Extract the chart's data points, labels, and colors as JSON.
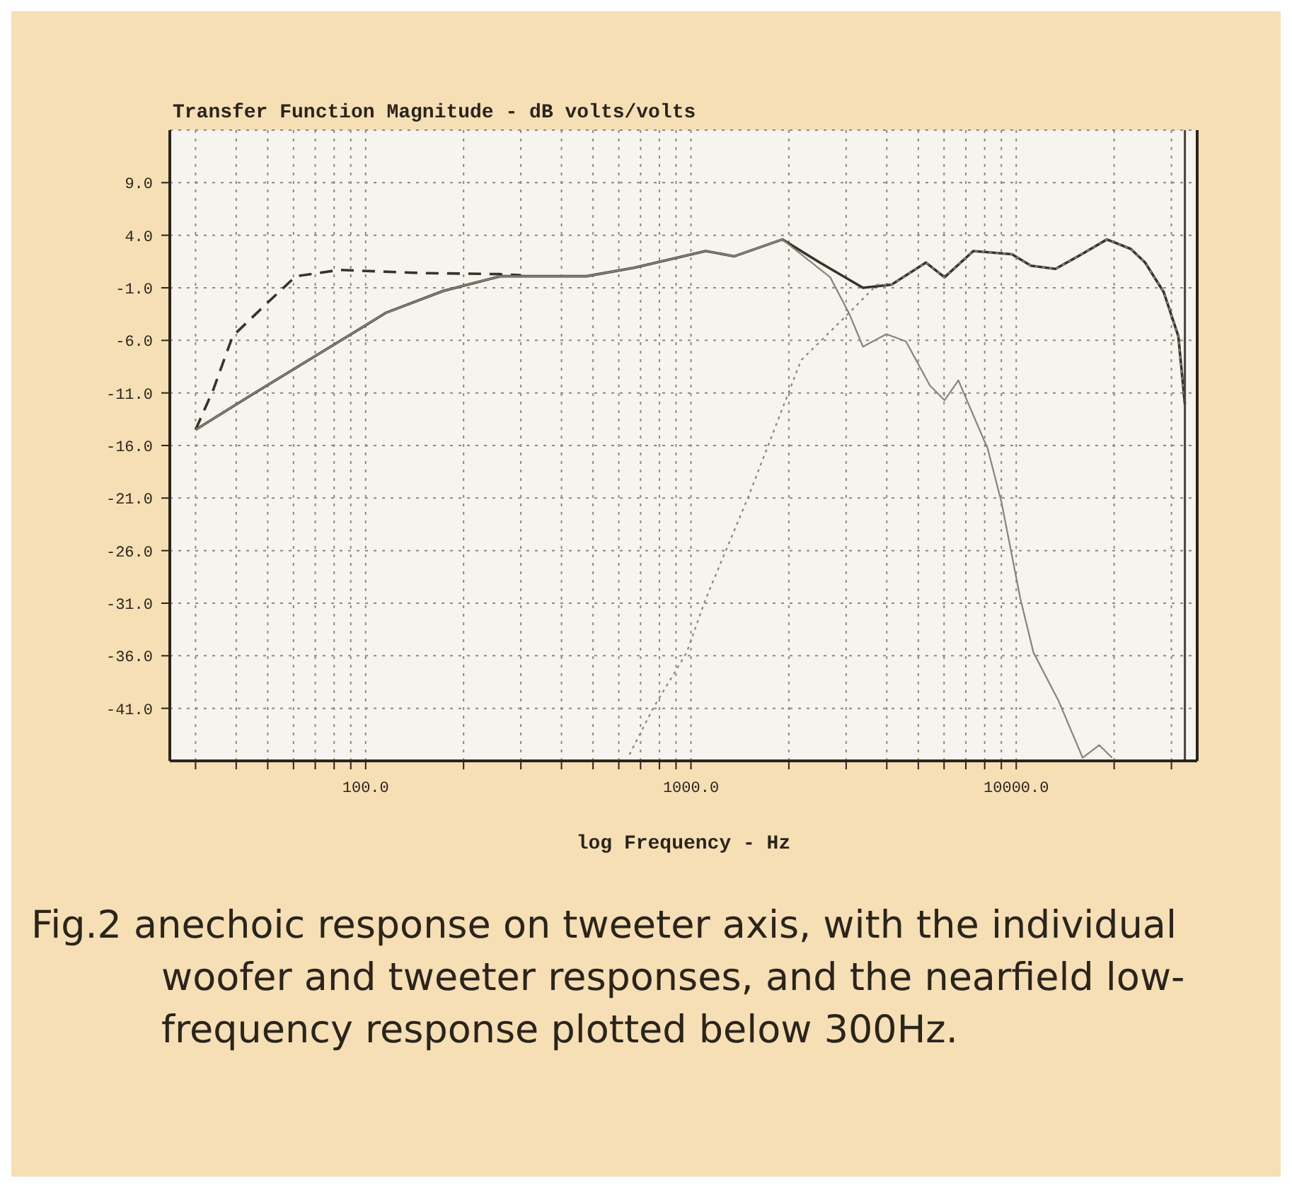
{
  "chart_data": {
    "type": "line",
    "title": "Transfer Function Magnitude - dB volts/volts",
    "xlabel": "log Frequency - Hz",
    "log": "x",
    "xlim": [
      25,
      36000
    ],
    "ylim": [
      -46,
      14
    ],
    "xticks": [
      {
        "value": 30,
        "label": null
      },
      {
        "value": 40,
        "label": null
      },
      {
        "value": 50,
        "label": null
      },
      {
        "value": 60,
        "label": null
      },
      {
        "value": 70,
        "label": null
      },
      {
        "value": 80,
        "label": null
      },
      {
        "value": 90,
        "label": null
      },
      {
        "value": 100,
        "label": "100.0"
      },
      {
        "value": 200,
        "label": null
      },
      {
        "value": 300,
        "label": null
      },
      {
        "value": 400,
        "label": null
      },
      {
        "value": 500,
        "label": null
      },
      {
        "value": 600,
        "label": null
      },
      {
        "value": 700,
        "label": null
      },
      {
        "value": 800,
        "label": null
      },
      {
        "value": 900,
        "label": null
      },
      {
        "value": 1000,
        "label": "1000.0"
      },
      {
        "value": 2000,
        "label": null
      },
      {
        "value": 3000,
        "label": null
      },
      {
        "value": 4000,
        "label": null
      },
      {
        "value": 5000,
        "label": null
      },
      {
        "value": 6000,
        "label": null
      },
      {
        "value": 7000,
        "label": null
      },
      {
        "value": 8000,
        "label": null
      },
      {
        "value": 9000,
        "label": null
      },
      {
        "value": 10000,
        "label": "10000.0"
      },
      {
        "value": 20000,
        "label": null
      },
      {
        "value": 30000,
        "label": null
      }
    ],
    "yticks": [
      {
        "value": 9,
        "label": "9.0"
      },
      {
        "value": 4,
        "label": "4.0"
      },
      {
        "value": -1,
        "label": "-1.0"
      },
      {
        "value": -6,
        "label": "-6.0"
      },
      {
        "value": -11,
        "label": "-11.0"
      },
      {
        "value": -16,
        "label": "-16.0"
      },
      {
        "value": -21,
        "label": "-21.0"
      },
      {
        "value": -26,
        "label": "-26.0"
      },
      {
        "value": -31,
        "label": "-31.0"
      },
      {
        "value": -36,
        "label": "-36.0"
      },
      {
        "value": -41,
        "label": "-41.0"
      }
    ],
    "grid": true,
    "legend": false,
    "marker": "none",
    "ref_lines": [
      {
        "axis": "x",
        "value": 33000,
        "color": "#4a4238"
      }
    ],
    "series": [
      {
        "color": "#3a3226",
        "line_style": "solid",
        "x": [
          30,
          45,
          83,
          115,
          173,
          259,
          477,
          667,
          1110,
          1360,
          1910,
          2490,
          3380,
          4140,
          5280,
          6020,
          7380,
          9700,
          11100,
          13200,
          15500,
          19000,
          22500,
          24900,
          28400,
          31500,
          33000
        ],
        "values": [
          -14.5,
          -11.1,
          -6.1,
          -3.4,
          -1.3,
          0.1,
          0.1,
          0.9,
          2.5,
          2,
          3.6,
          1.4,
          -1,
          -0.7,
          1.4,
          0,
          2.5,
          2.2,
          1.1,
          0.8,
          2,
          3.6,
          2.7,
          1.4,
          -1.4,
          -5.6,
          -12.1
        ]
      },
      {
        "color": "#3a3226",
        "line_style": "dashed",
        "x": [
          30,
          34,
          39,
          50,
          61,
          83,
          150,
          259,
          300
        ],
        "values": [
          -14.5,
          -10.7,
          -5.6,
          -2.4,
          0.1,
          0.7,
          0.4,
          0.3,
          0.2
        ]
      },
      {
        "color": "#8a8378",
        "line_style": "solid",
        "x": [
          30,
          45,
          83,
          115,
          173,
          259,
          477,
          667,
          1110,
          1360,
          1910,
          2680,
          3060,
          3380,
          3990,
          4580,
          5430,
          6020,
          6640,
          8170,
          9010,
          10300,
          11300,
          13500,
          16000,
          18000,
          19700
        ],
        "values": [
          -14.5,
          -11.1,
          -6.1,
          -3.4,
          -1.3,
          0.1,
          0.1,
          0.9,
          2.5,
          2,
          3.6,
          0,
          -3.4,
          -6.6,
          -5.4,
          -6.1,
          -10.3,
          -11.7,
          -9.8,
          -16.3,
          -21.4,
          -30.6,
          -35.7,
          -40.3,
          -45.7,
          -44.5,
          -45.7
        ]
      },
      {
        "color": "#8a8378",
        "line_style": "dotted",
        "x": [
          647,
          768,
          970,
          1110,
          1500,
          2180,
          3060,
          3730,
          4140,
          5280,
          6020,
          7380,
          9700,
          11100,
          13200,
          15500,
          19000,
          22500,
          24900,
          28400,
          31500,
          33000
        ],
        "values": [
          -45.4,
          -40.9,
          -35.7,
          -30.6,
          -20.9,
          -7.9,
          -3.4,
          -0.7,
          -0.7,
          1.4,
          0,
          2.5,
          2.2,
          1.1,
          0.8,
          2,
          3.6,
          2.7,
          1.4,
          -1.4,
          -5.6,
          -12.1
        ]
      }
    ],
    "annotations": [
      "Fig.2  anechoic response on tweeter axis, with the individual woofer and tweeter responses, and the nearfield low-frequency response plotted below 300Hz."
    ]
  }
}
